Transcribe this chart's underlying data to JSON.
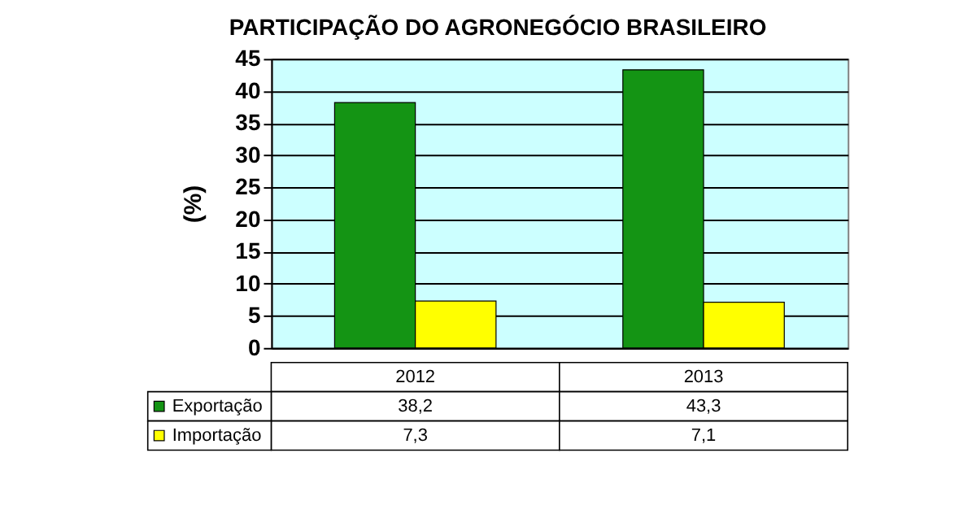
{
  "chart_data": {
    "type": "bar",
    "title": "PARTICIPAÇÃO DO AGRONEGÓCIO BRASILEIRO",
    "ylabel": "(%)",
    "categories": [
      "2012",
      "2013"
    ],
    "series": [
      {
        "name": "Exportação",
        "color": "#149414",
        "values": [
          38.2,
          43.3
        ],
        "value_labels": [
          "38,2",
          "43,3"
        ]
      },
      {
        "name": "Importação",
        "color": "#ffff00",
        "values": [
          7.3,
          7.1
        ],
        "value_labels": [
          "7,3",
          "7,1"
        ]
      }
    ],
    "ylim": [
      0,
      45
    ],
    "yticks": [
      0,
      5,
      10,
      15,
      20,
      25,
      30,
      35,
      40,
      45
    ],
    "grid": "y",
    "legend": "bottom left"
  }
}
